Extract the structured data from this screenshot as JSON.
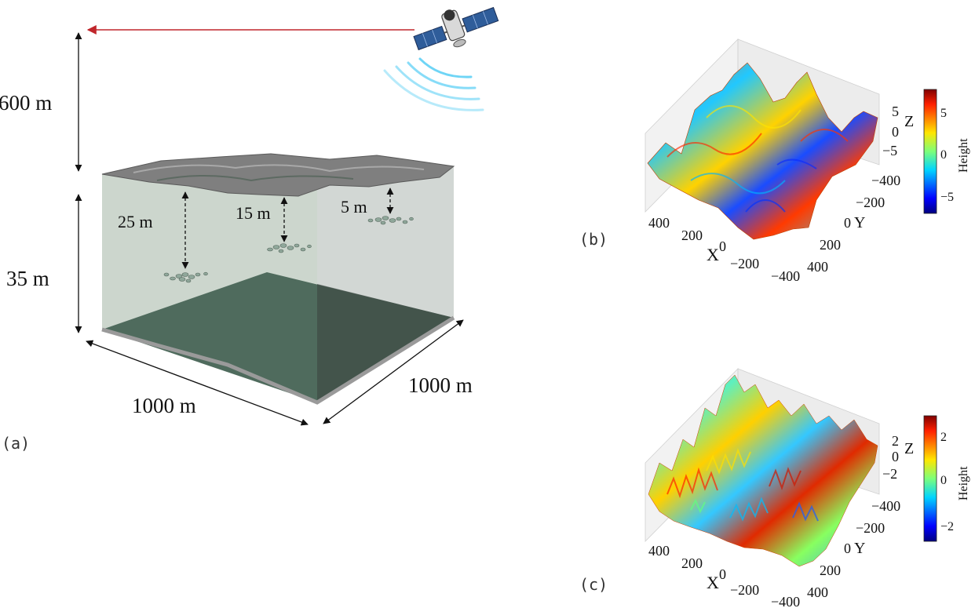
{
  "panel_a": {
    "label": "(a)",
    "altitude_label": "600 m",
    "depth_label": "35 m",
    "width_label": "1000 m",
    "length_label": "1000 m",
    "gap_labels": [
      "25 m",
      "15 m",
      "5 m"
    ],
    "signal_color": "#c0262b"
  },
  "panel_b": {
    "label": "(b)",
    "colorbar_title": "Height",
    "colorbar_ticks": [
      "5",
      "0",
      "−5"
    ],
    "z_label": "Z",
    "z_ticks": [
      "5",
      "0",
      "−5"
    ],
    "x_label": "X",
    "x_ticks": [
      "400",
      "200",
      "0",
      "−200",
      "−400"
    ],
    "y_label": "Y",
    "y_ticks": [
      "−400",
      "−200",
      "0",
      "200",
      "400"
    ]
  },
  "panel_c": {
    "label": "(c)",
    "colorbar_title": "Height",
    "colorbar_ticks": [
      "2",
      "0",
      "−2"
    ],
    "z_label": "Z",
    "z_ticks": [
      "2",
      "0",
      "−2"
    ],
    "x_label": "X",
    "x_ticks": [
      "400",
      "200",
      "0",
      "−200",
      "−400"
    ],
    "y_label": "Y",
    "y_ticks": [
      "−400",
      "−200",
      "0",
      "200",
      "400"
    ]
  }
}
